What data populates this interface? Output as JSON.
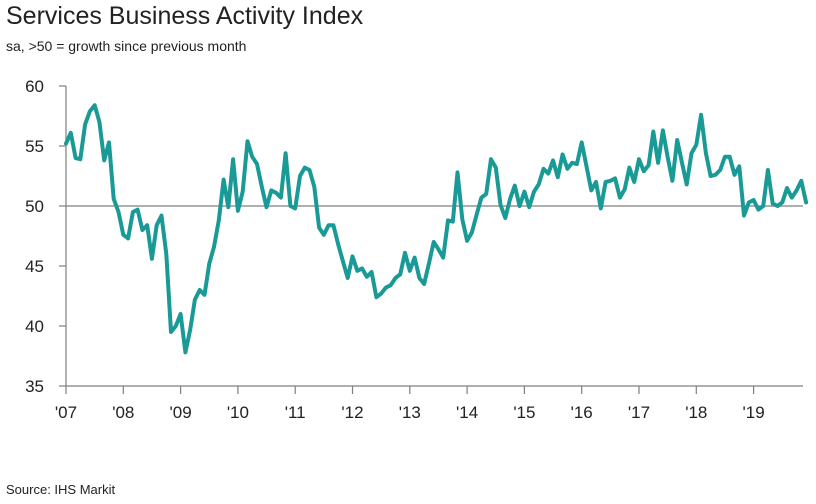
{
  "chart_data": {
    "type": "line",
    "title": "Services Business Activity Index",
    "subtitle": "sa, >50 = growth since previous month",
    "source": "Source: IHS Markit",
    "xlabel": "",
    "ylabel": "",
    "ylim": [
      35,
      60
    ],
    "y_ticks": [
      35,
      40,
      45,
      50,
      55,
      60
    ],
    "x_ticks": [
      {
        "year": 2007,
        "label": "'07"
      },
      {
        "year": 2008,
        "label": "'08"
      },
      {
        "year": 2009,
        "label": "'09"
      },
      {
        "year": 2010,
        "label": "'10"
      },
      {
        "year": 2011,
        "label": "'11"
      },
      {
        "year": 2012,
        "label": "'12"
      },
      {
        "year": 2013,
        "label": "'13"
      },
      {
        "year": 2014,
        "label": "'14"
      },
      {
        "year": 2015,
        "label": "'15"
      },
      {
        "year": 2016,
        "label": "'16"
      },
      {
        "year": 2017,
        "label": "'17"
      },
      {
        "year": 2018,
        "label": "'18"
      },
      {
        "year": 2019,
        "label": "'19"
      }
    ],
    "reference_line": 50,
    "grid": false,
    "line_color": "#1a9a96",
    "axis_color": "#7f7f7f",
    "series": [
      {
        "start": "2007-01",
        "values": [
          55.2,
          56.1,
          54.0,
          53.9,
          56.8,
          57.9,
          58.4,
          57.0,
          53.8,
          55.3,
          50.6,
          49.5,
          47.6,
          47.3,
          49.5,
          49.7,
          48.0,
          48.4,
          45.6,
          48.4,
          49.2,
          46.0,
          39.5,
          40.0,
          41.0,
          37.8,
          39.7,
          42.2,
          43.0,
          42.6,
          45.2,
          46.6,
          48.8,
          52.2,
          49.9,
          53.9,
          49.6,
          51.2,
          55.4,
          54.1,
          53.5,
          51.6,
          49.9,
          51.3,
          51.1,
          50.7,
          54.4,
          50.0,
          49.8,
          52.5,
          53.2,
          53.0,
          51.6,
          48.2,
          47.6,
          48.4,
          48.4,
          46.8,
          45.4,
          44.0,
          45.8,
          44.6,
          44.8,
          44.1,
          44.5,
          42.4,
          42.7,
          43.2,
          43.4,
          44.0,
          44.3,
          46.1,
          44.6,
          45.7,
          44.0,
          43.5,
          45.2,
          47.0,
          46.4,
          45.7,
          48.8,
          48.7,
          52.8,
          48.9,
          47.1,
          47.8,
          49.3,
          50.7,
          51.0,
          53.9,
          53.2,
          50.1,
          49.0,
          50.6,
          51.7,
          50.0,
          51.2,
          49.9,
          51.2,
          51.8,
          53.1,
          52.7,
          53.8,
          52.4,
          54.3,
          53.1,
          53.6,
          53.5,
          55.3,
          53.3,
          51.3,
          52.0,
          49.8,
          52.0,
          52.1,
          52.3,
          50.7,
          51.4,
          53.2,
          52.0,
          53.9,
          52.9,
          53.4,
          56.2,
          53.6,
          56.3,
          54.1,
          52.1,
          55.5,
          53.6,
          51.8,
          54.4,
          55.1,
          57.6,
          54.4,
          52.5,
          52.6,
          53.0,
          54.1,
          54.1,
          52.6,
          53.3,
          49.2,
          50.3,
          50.5,
          49.7,
          50.0,
          53.0,
          50.2,
          50.0,
          50.3,
          51.5,
          50.7,
          51.3,
          52.1,
          50.3
        ]
      }
    ]
  }
}
